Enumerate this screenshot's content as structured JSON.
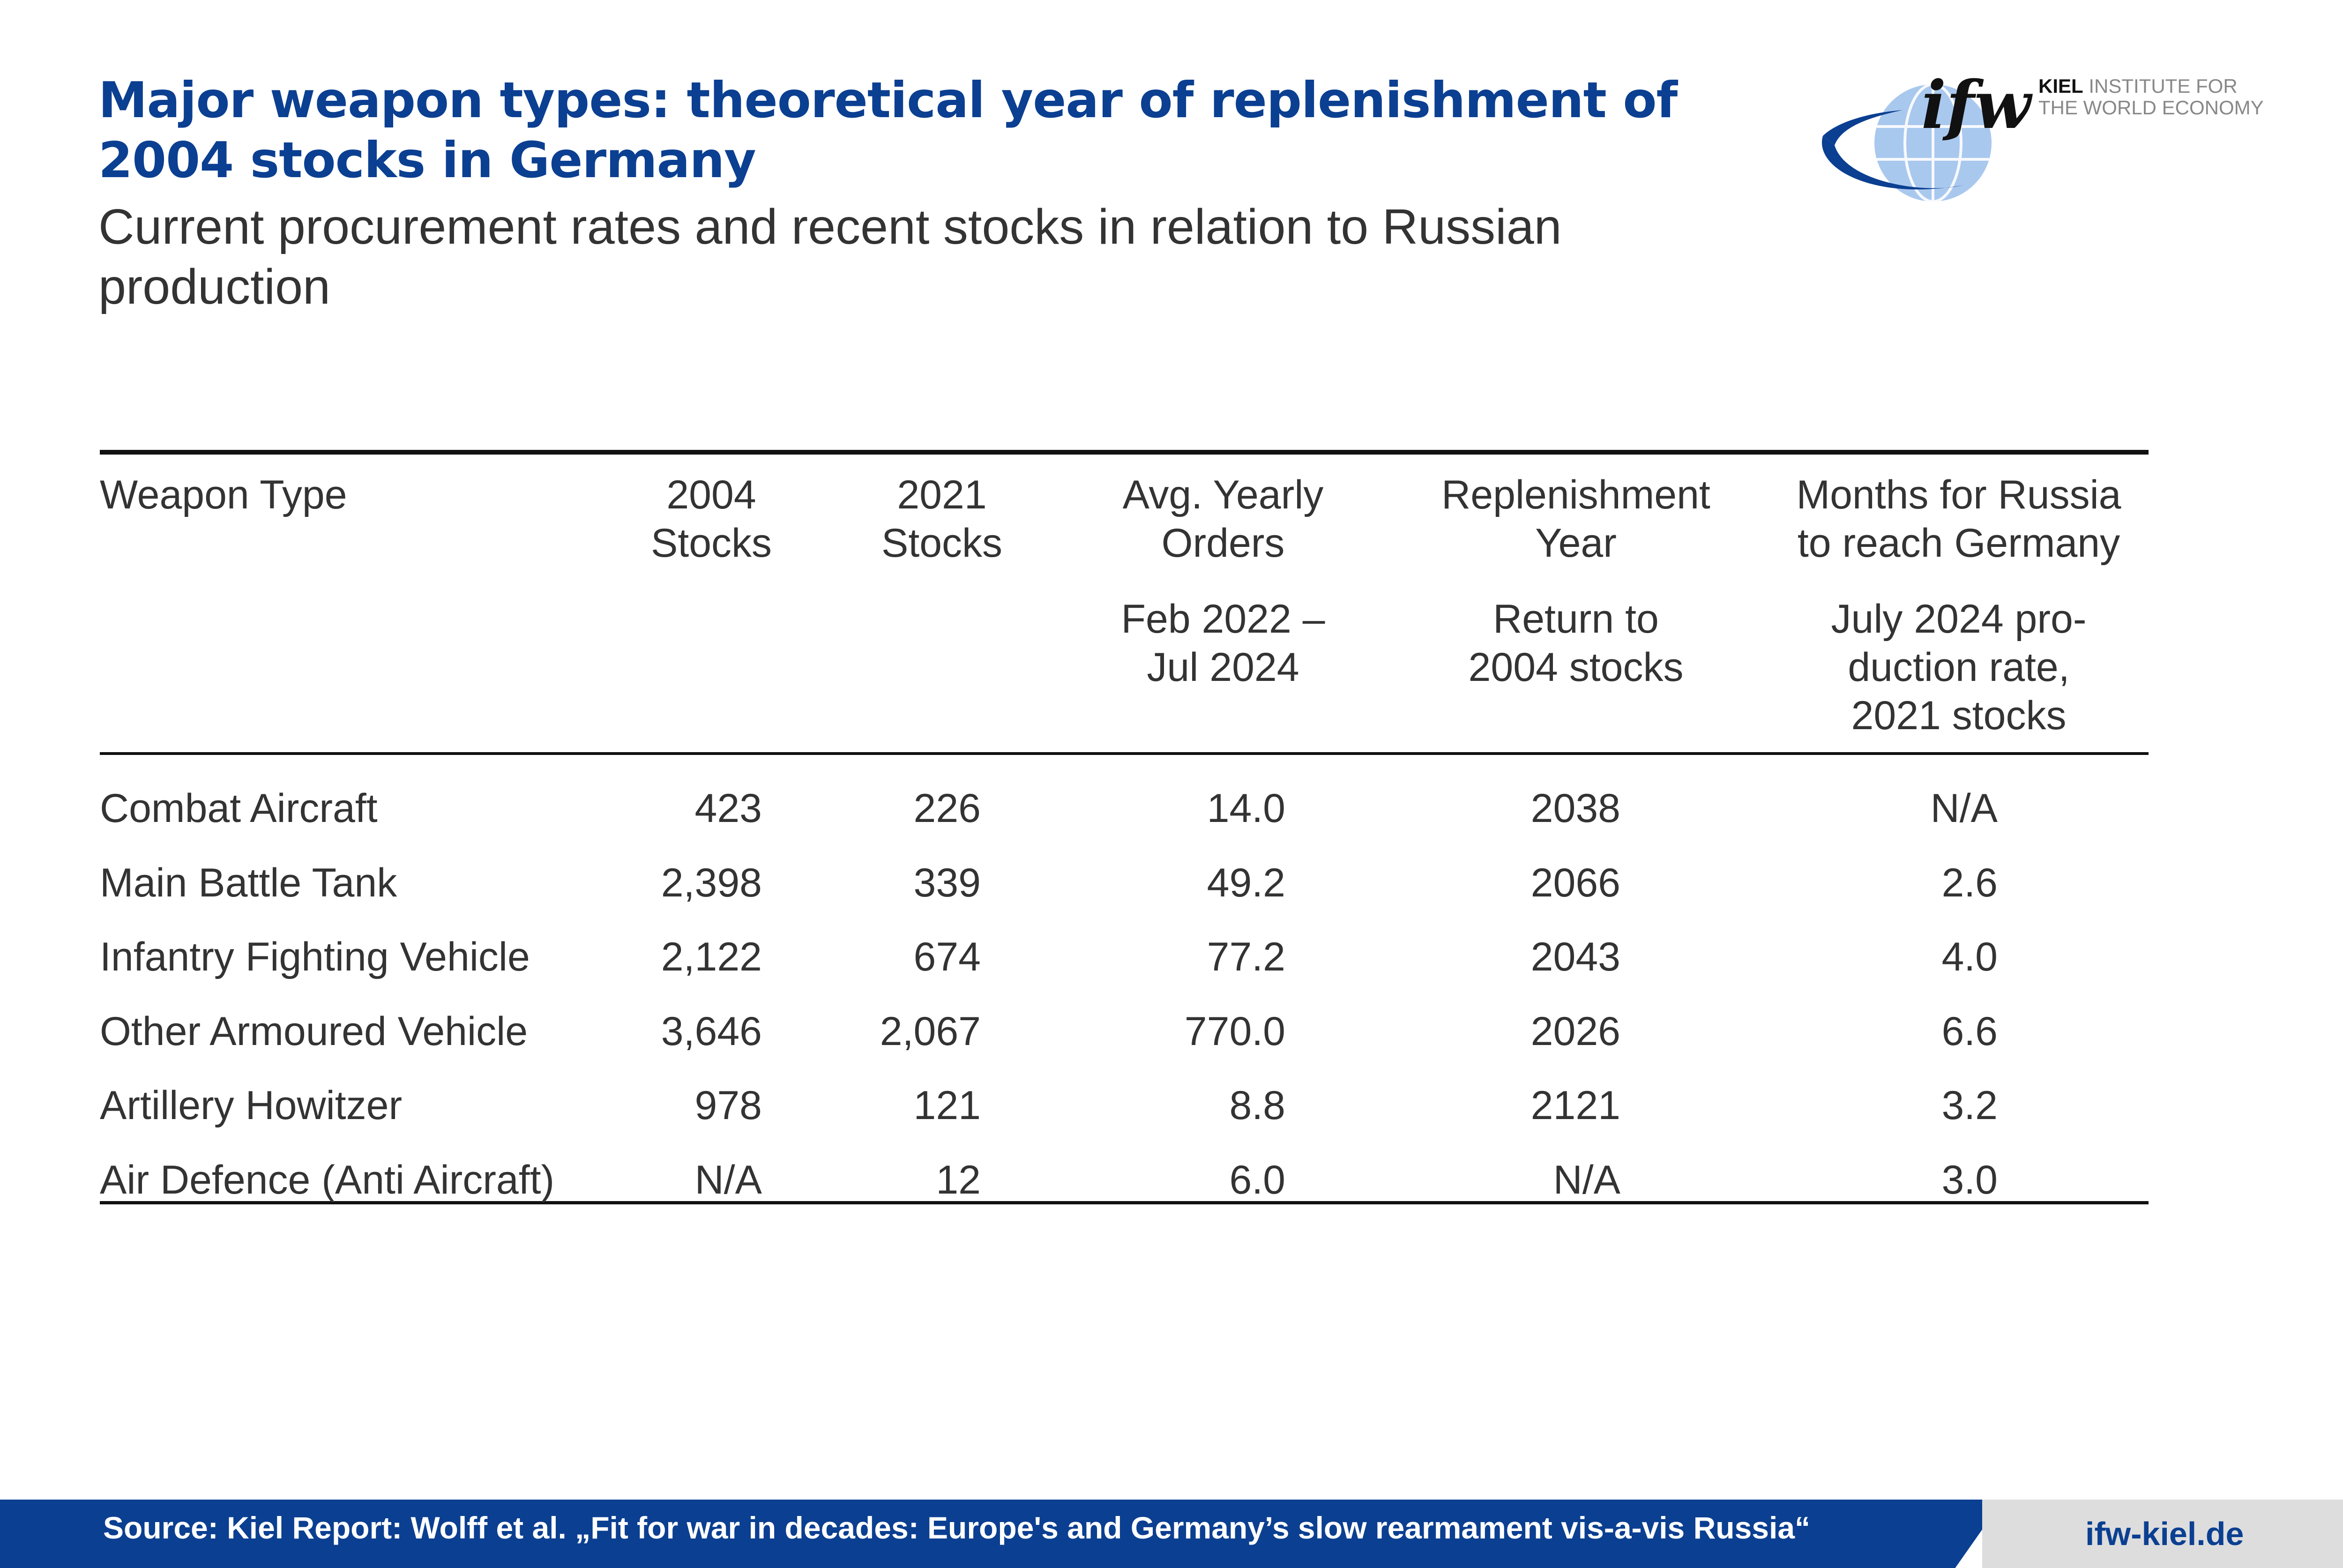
{
  "title": "Major weapon types: theoretical year of replenishment of 2004 stocks in Germany",
  "subtitle": "Current procurement rates and recent stocks in relation to Russian production",
  "logo": {
    "word": "ifw",
    "line1_bold": "KIEL",
    "line1_rest": " INSTITUTE FOR",
    "line2": "THE WORLD ECONOMY"
  },
  "chart_data": {
    "type": "table",
    "columns": [
      {
        "key": "weapon",
        "header": [
          "Weapon Type"
        ],
        "subheader": []
      },
      {
        "key": "stocks_2004",
        "header": [
          "2004",
          "Stocks"
        ],
        "subheader": []
      },
      {
        "key": "stocks_2021",
        "header": [
          "2021",
          "Stocks"
        ],
        "subheader": []
      },
      {
        "key": "avg_orders",
        "header": [
          "Avg. Yearly",
          "Orders"
        ],
        "subheader": [
          "Feb 2022 –",
          "Jul 2024"
        ]
      },
      {
        "key": "replenishment",
        "header": [
          "Replenishment",
          "Year"
        ],
        "subheader": [
          "Return to",
          "2004 stocks"
        ]
      },
      {
        "key": "months_russia",
        "header": [
          "Months for Russia",
          "to reach Germany"
        ],
        "subheader": [
          "July 2024 pro-",
          "duction rate,",
          "2021 stocks"
        ]
      }
    ],
    "rows": [
      {
        "weapon": "Combat Aircraft",
        "stocks_2004": "423",
        "stocks_2021": "226",
        "avg_orders": "14.0",
        "replenishment": "2038",
        "months_russia": "N/A"
      },
      {
        "weapon": "Main Battle Tank",
        "stocks_2004": "2,398",
        "stocks_2021": "339",
        "avg_orders": "49.2",
        "replenishment": "2066",
        "months_russia": "2.6"
      },
      {
        "weapon": "Infantry Fighting Vehicle",
        "stocks_2004": "2,122",
        "stocks_2021": "674",
        "avg_orders": "77.2",
        "replenishment": "2043",
        "months_russia": "4.0"
      },
      {
        "weapon": "Other Armoured Vehicle",
        "stocks_2004": "3,646",
        "stocks_2021": "2,067",
        "avg_orders": "770.0",
        "replenishment": "2026",
        "months_russia": "6.6"
      },
      {
        "weapon": "Artillery Howitzer",
        "stocks_2004": "978",
        "stocks_2021": "121",
        "avg_orders": "8.8",
        "replenishment": "2121",
        "months_russia": "3.2"
      },
      {
        "weapon": "Air Defence (Anti Aircraft)",
        "stocks_2004": "N/A",
        "stocks_2021": "12",
        "avg_orders": "6.0",
        "replenishment": "N/A",
        "months_russia": "3.0"
      }
    ]
  },
  "footer": {
    "source": "Source: Kiel Report: Wolff et al. „Fit for war in decades: Europe's and Germany’s slow rearmament vis-a-vis Russia“",
    "site": "ifw-kiel.de"
  },
  "colors": {
    "brand_blue": "#0b3f91",
    "globe_light": "#a9c8ee",
    "footer_grey": "#dddddd"
  }
}
